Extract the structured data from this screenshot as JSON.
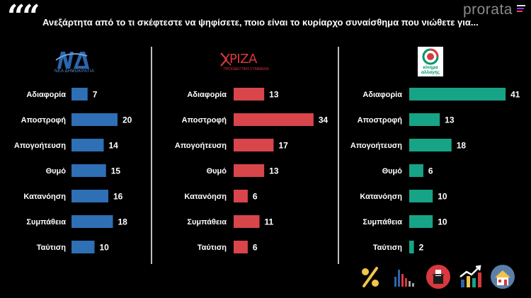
{
  "header": {
    "quote_mark": "““",
    "question": "Ανεξάρτητα από το τι σκέφτεστε να ψηφίσετε, ποιο είναι το κυρίαρχο συναίσθημα που νιώθετε για...",
    "brand": "prorata"
  },
  "logos": [
    {
      "name": "ND",
      "text": "ΝΔ",
      "subtext": "ΝΕΑ ΔΗΜΟΚΡΑΤΙΑ",
      "color": "#2b65ad"
    },
    {
      "name": "SYRIZA",
      "text": "ΣΥΡΙΖΑ",
      "subtext": "ΠΡΟΟΔΕΥΤΙΚΗ ΣΥΜΜΑΧΙΑ",
      "color": "#d9383e"
    },
    {
      "name": "KINAL",
      "text": "κίνημα αλλαγής",
      "color": "#00956b"
    }
  ],
  "chart_data": [
    {
      "type": "bar",
      "orientation": "horizontal",
      "series_color": "#2f6fb5",
      "categories": [
        "Αδιαφορία",
        "Αποστροφή",
        "Απογοήτευση",
        "Θυμό",
        "Κατανόηση",
        "Συμπάθεια",
        "Ταύτιση"
      ],
      "values": [
        7,
        20,
        14,
        15,
        16,
        18,
        10
      ]
    },
    {
      "type": "bar",
      "orientation": "horizontal",
      "series_color": "#d8454a",
      "categories": [
        "Αδιαφορία",
        "Αποστροφή",
        "Απογοήτευση",
        "Θυμό",
        "Κατανόηση",
        "Συμπάθεια",
        "Ταύτιση"
      ],
      "values": [
        13,
        34,
        17,
        13,
        6,
        11,
        6
      ]
    },
    {
      "type": "bar",
      "orientation": "horizontal",
      "series_color": "#17a386",
      "categories": [
        "Αδιαφορία",
        "Αποστροφή",
        "Απογοήτευση",
        "Θυμό",
        "Κατανόηση",
        "Συμπάθεια",
        "Ταύτιση"
      ],
      "values": [
        41,
        13,
        18,
        6,
        10,
        10,
        2
      ]
    }
  ],
  "toolbar": {
    "icons": [
      "percent-icon",
      "bar-chart-icon",
      "ballot-box-icon",
      "growth-chart-icon",
      "home-icon"
    ]
  }
}
